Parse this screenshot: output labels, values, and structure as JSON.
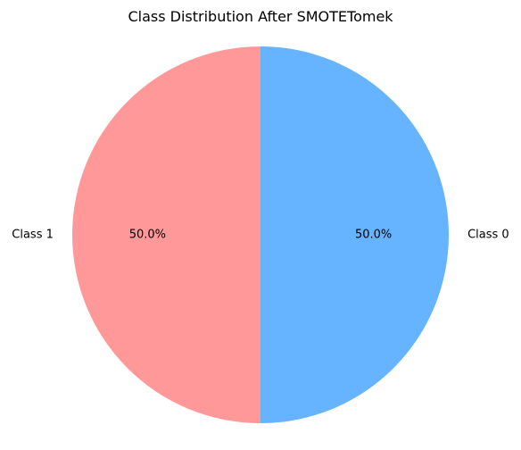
{
  "chart_data": {
    "type": "pie",
    "title": "Class Distribution After SMOTETomek",
    "categories": [
      "Class 0",
      "Class 1"
    ],
    "values": [
      50.0,
      50.0
    ],
    "percent_labels": [
      "50.0%",
      "50.0%"
    ],
    "colors": [
      "#66b3ff",
      "#ff9999"
    ],
    "start_angle_deg": 90,
    "direction": "clockwise"
  }
}
